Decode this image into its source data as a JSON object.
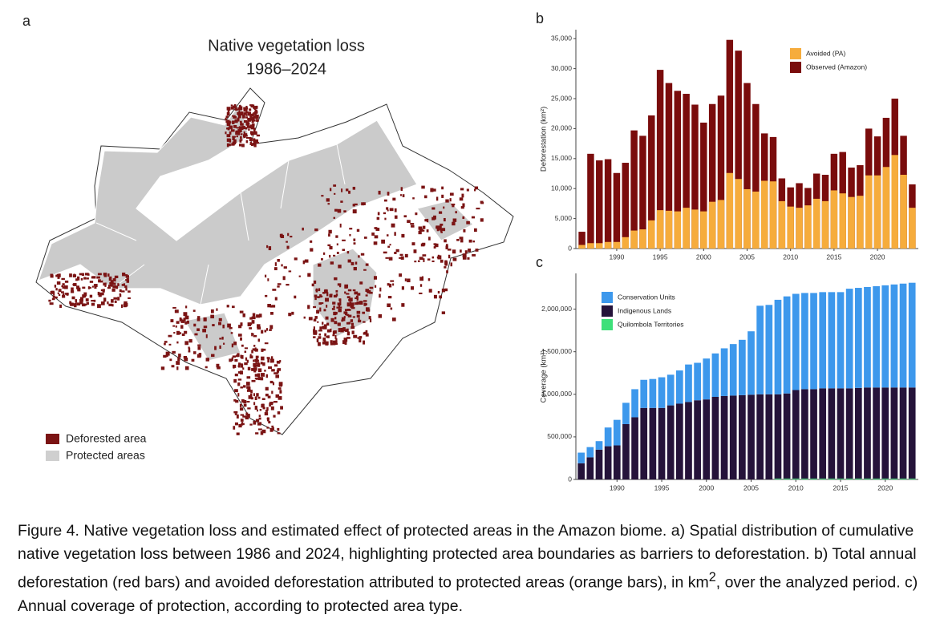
{
  "panels": {
    "a": "a",
    "b": "b",
    "c": "c"
  },
  "map": {
    "title": "Native vegetation loss",
    "subtitle": "1986–2024",
    "legend": [
      {
        "name": "Deforested area",
        "color": "#7b1414"
      },
      {
        "name": "Protected areas",
        "color": "#cfcfcf"
      }
    ]
  },
  "chart_data": [
    {
      "type": "bar",
      "ylabel": "Deforestation (km²)",
      "x": [
        1986,
        1987,
        1988,
        1989,
        1990,
        1991,
        1992,
        1993,
        1994,
        1995,
        1996,
        1997,
        1998,
        1999,
        2000,
        2001,
        2002,
        2003,
        2004,
        2005,
        2006,
        2007,
        2008,
        2009,
        2010,
        2011,
        2012,
        2013,
        2014,
        2015,
        2016,
        2017,
        2018,
        2019,
        2020,
        2021,
        2022,
        2023,
        2024
      ],
      "xlim": [
        1985.3,
        2024.7
      ],
      "xticks": [
        1990,
        1995,
        2000,
        2005,
        2010,
        2015,
        2020
      ],
      "ylim": [
        0,
        36500
      ],
      "yticks": [
        0,
        {
          "value": 5000,
          "label": "5,000"
        },
        {
          "value": 10000,
          "label": "10,000"
        },
        {
          "value": 15000,
          "label": "15,000"
        },
        {
          "value": 20000,
          "label": "20,000"
        },
        {
          "value": 25000,
          "label": "25,000"
        },
        {
          "value": 30000,
          "label": "30,000"
        },
        {
          "value": 35000,
          "label": "35,000"
        }
      ],
      "legend": "top-right",
      "series": [
        {
          "name": "Avoided (PA)",
          "color": "#f6ac3c",
          "values": [
            600,
            900,
            900,
            1100,
            1100,
            1900,
            3000,
            3200,
            4700,
            6400,
            6300,
            6200,
            6800,
            6500,
            6200,
            7800,
            8100,
            12600,
            11600,
            9900,
            9500,
            11300,
            11200,
            7900,
            7000,
            6800,
            7200,
            8300,
            7900,
            9700,
            9200,
            8600,
            8800,
            12200,
            12200,
            13600,
            15600,
            12300,
            6800
          ]
        },
        {
          "name": "Observed (Amazon)",
          "color": "#7a0c0c",
          "values": [
            2800,
            15800,
            14700,
            14900,
            12600,
            14300,
            19700,
            18800,
            22200,
            29800,
            27600,
            26300,
            25800,
            24000,
            21000,
            24100,
            25500,
            34800,
            33000,
            27600,
            24100,
            19200,
            18600,
            11700,
            10200,
            10900,
            10100,
            12500,
            12300,
            15800,
            16100,
            13500,
            13900,
            20000,
            18700,
            21800,
            25000,
            18800,
            10700
          ]
        }
      ]
    },
    {
      "type": "stacked_bar",
      "ylabel": "Coverage (km²)",
      "x": [
        1986,
        1987,
        1988,
        1989,
        1990,
        1991,
        1992,
        1993,
        1994,
        1995,
        1996,
        1997,
        1998,
        1999,
        2000,
        2001,
        2002,
        2003,
        2004,
        2005,
        2006,
        2007,
        2008,
        2009,
        2010,
        2011,
        2012,
        2013,
        2014,
        2015,
        2016,
        2017,
        2018,
        2019,
        2020,
        2021,
        2022,
        2023
      ],
      "xlim": [
        1985.4,
        2023.7
      ],
      "xticks": [
        1990,
        1995,
        2000,
        2005,
        2010,
        2015,
        2020
      ],
      "ylim": [
        0,
        2420000
      ],
      "yticks": [
        0,
        {
          "value": 500000,
          "label": "500,000"
        },
        {
          "value": 1000000,
          "label": "1,000,000"
        },
        {
          "value": 1500000,
          "label": "1,500,000"
        },
        {
          "value": 2000000,
          "label": "2,000,000"
        }
      ],
      "legend": "top-left",
      "series": [
        {
          "name": "Conservation Units",
          "color": "#3d98ec",
          "values": [
            125000,
            120000,
            100000,
            220000,
            300000,
            250000,
            330000,
            330000,
            340000,
            360000,
            360000,
            390000,
            440000,
            440000,
            480000,
            510000,
            560000,
            605000,
            650000,
            745000,
            1040000,
            1050000,
            1110000,
            1140000,
            1130000,
            1130000,
            1130000,
            1130000,
            1130000,
            1130000,
            1170000,
            1175000,
            1180000,
            1190000,
            1200000,
            1210000,
            1220000,
            1230000
          ]
        },
        {
          "name": "Indigenous Lands",
          "color": "#25133a",
          "values": [
            190000,
            260000,
            350000,
            390000,
            400000,
            650000,
            730000,
            840000,
            840000,
            840000,
            870000,
            890000,
            910000,
            930000,
            940000,
            970000,
            980000,
            985000,
            990000,
            995000,
            1000000,
            1000000,
            990000,
            1000000,
            1040000,
            1050000,
            1050000,
            1060000,
            1060000,
            1060000,
            1060000,
            1065000,
            1070000,
            1070000,
            1070000,
            1070000,
            1070000,
            1070000
          ]
        },
        {
          "name": "Quilombola Territories",
          "color": "#3ee07a",
          "values": [
            0,
            0,
            0,
            0,
            0,
            0,
            0,
            0,
            0,
            0,
            0,
            0,
            0,
            0,
            0,
            0,
            0,
            0,
            0,
            0,
            0,
            0,
            10000,
            10000,
            10000,
            10000,
            10000,
            10000,
            10000,
            10000,
            10000,
            10000,
            10000,
            10000,
            10000,
            10000,
            10000,
            10000
          ]
        }
      ]
    }
  ],
  "caption": [
    "Figure 4. Native vegetation loss and estimated effect of protected areas in the Amazon biome. a) Spatial distribution of cumulative native vegetation loss between 1986 and 2024, highlighting protected area boundaries as barriers to deforestation. b) Total annual deforestation (red bars) and avoided deforestation attributed to protected areas (orange bars), in km",
    "2",
    ", over the analyzed period. c) Annual coverage of protection, according to protected area type."
  ]
}
